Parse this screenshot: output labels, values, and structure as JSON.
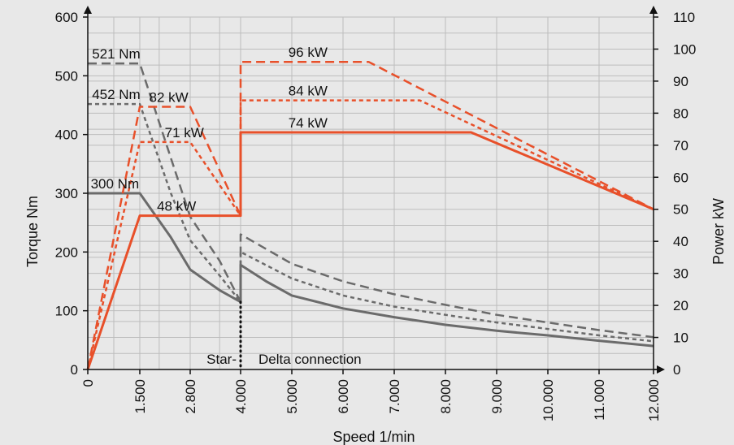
{
  "chart_data": {
    "type": "line",
    "xlabel": "Speed 1/min",
    "ylabel_left": "Torque Nm",
    "ylabel_right": "Power kW",
    "x_ticks": [
      "0",
      "1.500",
      "2.800",
      "4.000",
      "5.000",
      "6.000",
      "7.000",
      "8.000",
      "9.000",
      "10.000",
      "11.000",
      "12.000"
    ],
    "y_left_ticks": [
      "0",
      "100",
      "200",
      "300",
      "400",
      "500",
      "600"
    ],
    "y_right_ticks": [
      "0",
      "10",
      "20",
      "30",
      "40",
      "50",
      "60",
      "70",
      "80",
      "90",
      "100",
      "110"
    ],
    "y_left_range": [
      0,
      600
    ],
    "y_right_range": [
      0,
      110
    ],
    "grid": true,
    "colors": {
      "torque": "#6b6b6b",
      "power": "#e8502a",
      "background": "#e8e8e8"
    },
    "series": [
      {
        "axis": "left",
        "style": "solid",
        "x": [
          0,
          1.5,
          2.3,
          2.8,
          3.5,
          4,
          4,
          4.5,
          5,
          6,
          7,
          8,
          9,
          10,
          11,
          12
        ],
        "y": [
          300,
          300,
          225,
          170,
          135,
          115,
          178,
          150,
          126,
          104,
          89,
          76,
          66,
          58,
          49,
          40
        ]
      },
      {
        "axis": "left",
        "style": "short-dash",
        "x": [
          0,
          1.5,
          2.3,
          2.8,
          3.5,
          4,
          4,
          5,
          6,
          7,
          8,
          9,
          10,
          11,
          12
        ],
        "y": [
          452,
          452,
          300,
          220,
          160,
          115,
          200,
          155,
          126,
          107,
          93,
          80,
          69,
          58,
          48
        ]
      },
      {
        "axis": "left",
        "style": "long-dash",
        "x": [
          0,
          1.5,
          2.3,
          2.8,
          3.5,
          4,
          4,
          5,
          6,
          7,
          8,
          9,
          10,
          11,
          12
        ],
        "y": [
          521,
          521,
          360,
          260,
          185,
          115,
          230,
          180,
          150,
          128,
          110,
          93,
          80,
          67,
          55
        ]
      },
      {
        "axis": "right",
        "style": "solid",
        "x": [
          0,
          1.5,
          4,
          4,
          8.5,
          12
        ],
        "y": [
          0,
          48,
          48,
          74,
          74,
          50
        ]
      },
      {
        "axis": "right",
        "style": "short-dash",
        "x": [
          0,
          1.5,
          2.8,
          4,
          4,
          7.5,
          12
        ],
        "y": [
          0,
          71,
          71,
          48,
          84,
          84,
          50
        ]
      },
      {
        "axis": "right",
        "style": "long-dash",
        "x": [
          0,
          1.5,
          2.8,
          4,
          4,
          6.5,
          12
        ],
        "y": [
          0,
          82,
          82,
          48,
          96,
          96,
          50
        ]
      }
    ],
    "annotations": [
      {
        "text": "521 Nm",
        "x": 0.1,
        "y": 521,
        "axis": "left"
      },
      {
        "text": "452 Nm",
        "x": 0.1,
        "y": 452,
        "axis": "left"
      },
      {
        "text": "300 Nm",
        "x": 0.05,
        "y": 300,
        "axis": "left"
      },
      {
        "text": "82 kW",
        "x": 1.7,
        "y": 82,
        "axis": "right"
      },
      {
        "text": "71 kW",
        "x": 2.1,
        "y": 71,
        "axis": "right"
      },
      {
        "text": "48 kW",
        "x": 1.9,
        "y": 48,
        "axis": "right"
      },
      {
        "text": "96 kW",
        "x": 4.9,
        "y": 96,
        "axis": "right"
      },
      {
        "text": "84 kW",
        "x": 4.9,
        "y": 84,
        "axis": "right"
      },
      {
        "text": "74 kW",
        "x": 4.9,
        "y": 74,
        "axis": "right"
      }
    ],
    "connection_label_star": "Star-",
    "connection_label_delta": "Delta connection"
  }
}
